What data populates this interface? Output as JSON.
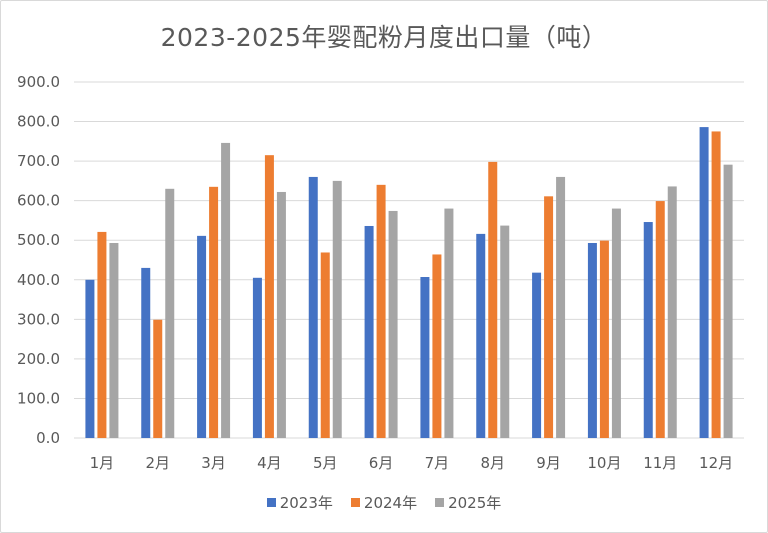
{
  "chart_data": {
    "type": "bar",
    "title": "2023-2025年婴配粉月度出口量（吨）",
    "categories": [
      "1月",
      "2月",
      "3月",
      "4月",
      "5月",
      "6月",
      "7月",
      "8月",
      "9月",
      "10月",
      "11月",
      "12月"
    ],
    "series": [
      {
        "name": "2023年",
        "color": "#4472c4",
        "values": [
          400,
          430,
          511,
          405,
          660,
          536,
          407,
          516,
          418,
          493,
          546,
          786
        ]
      },
      {
        "name": "2024年",
        "color": "#ed7d31",
        "values": [
          521,
          299,
          635,
          715,
          469,
          640,
          464,
          698,
          611,
          499,
          599,
          775
        ]
      },
      {
        "name": "2025年",
        "color": "#a5a5a5",
        "values": [
          493,
          630,
          746,
          622,
          650,
          574,
          580,
          537,
          660,
          580,
          636,
          691
        ]
      }
    ],
    "ylim": [
      0,
      900
    ],
    "yticks": [
      "0.0",
      "100.0",
      "200.0",
      "300.0",
      "400.0",
      "500.0",
      "600.0",
      "700.0",
      "800.0",
      "900.0"
    ],
    "grid": true,
    "legend": "bottom"
  }
}
